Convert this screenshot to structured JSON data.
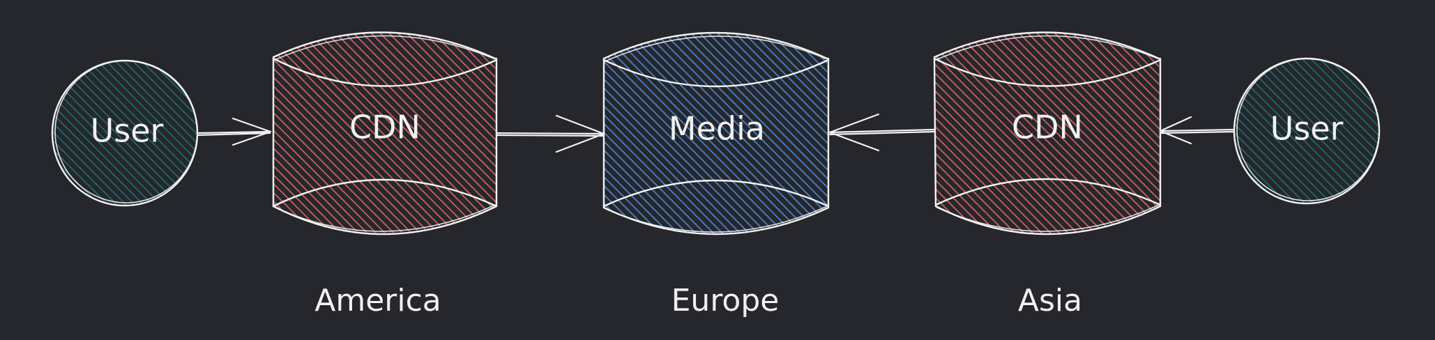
{
  "nodes": {
    "user_left": {
      "label": "User"
    },
    "cdn_america": {
      "label": "CDN"
    },
    "media_europe": {
      "label": "Media"
    },
    "cdn_asia": {
      "label": "CDN"
    },
    "user_right": {
      "label": "User"
    }
  },
  "regions": {
    "america": "America",
    "europe": "Europe",
    "asia": "Asia"
  },
  "colors": {
    "background": "#25272c",
    "user_fill": "#1e7070",
    "cdn_fill": "#d86262",
    "media_fill": "#4a82c8",
    "stroke": "#f3f3f3"
  },
  "edges": [
    {
      "from": "User",
      "to": "CDN (America)"
    },
    {
      "from": "CDN (America)",
      "to": "Media (Europe)"
    },
    {
      "from": "CDN (Asia)",
      "to": "Media (Europe)"
    },
    {
      "from": "User",
      "to": "CDN (Asia)"
    }
  ]
}
